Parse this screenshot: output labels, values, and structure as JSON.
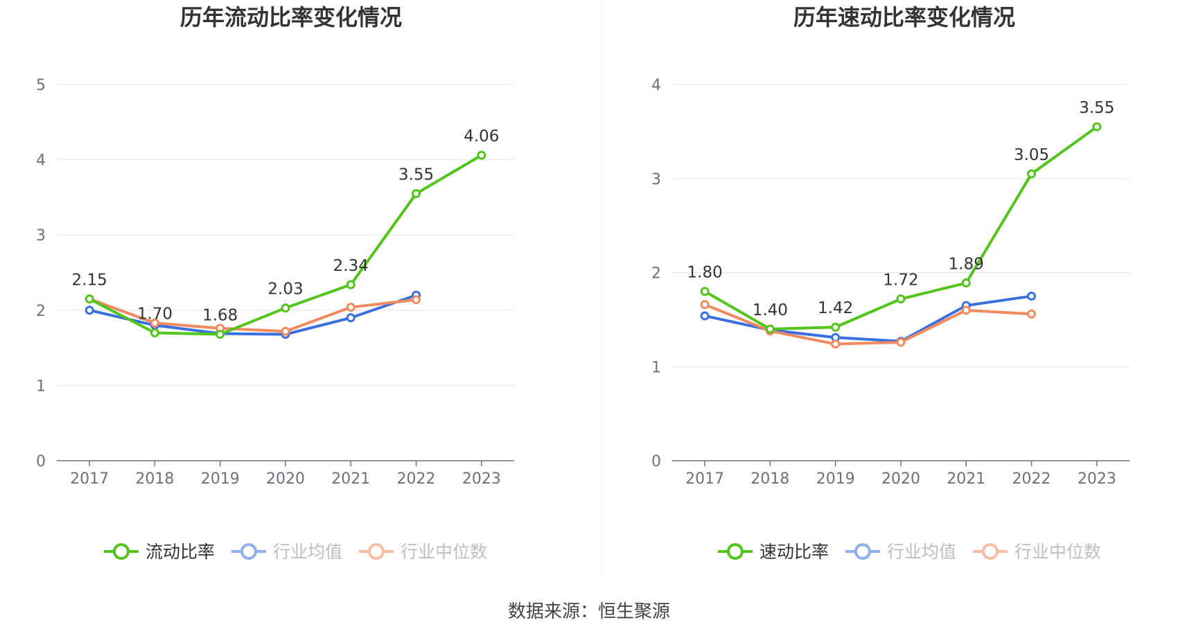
{
  "footer": {
    "source": "数据来源：恒生聚源"
  },
  "colors": {
    "main": "#52c41a",
    "avg": "#3a6fe0",
    "median": "#f28a5f",
    "grid": "#e0e6f1",
    "axis": "#6e7079"
  },
  "chart_data": [
    {
      "type": "line",
      "title": "历年流动比率变化情况",
      "categories": [
        "2017",
        "2018",
        "2019",
        "2020",
        "2021",
        "2022",
        "2023"
      ],
      "ylim": [
        0,
        5
      ],
      "yticks": [
        0,
        1,
        2,
        3,
        4,
        5
      ],
      "legend_position": "bottom",
      "series": [
        {
          "name": "流动比率",
          "values": [
            2.15,
            1.7,
            1.68,
            2.03,
            2.34,
            3.55,
            4.06
          ],
          "labels": [
            "2.15",
            "1.70",
            "1.68",
            "2.03",
            "2.34",
            "3.55",
            "4.06"
          ],
          "legend_style": "solid"
        },
        {
          "name": "行业均值",
          "values": [
            2.0,
            1.8,
            1.69,
            1.68,
            1.9,
            2.2,
            null
          ],
          "legend_style": "faded"
        },
        {
          "name": "行业中位数",
          "values": [
            2.15,
            1.83,
            1.76,
            1.72,
            2.04,
            2.14,
            null
          ],
          "legend_style": "faded"
        }
      ]
    },
    {
      "type": "line",
      "title": "历年速动比率变化情况",
      "categories": [
        "2017",
        "2018",
        "2019",
        "2020",
        "2021",
        "2022",
        "2023"
      ],
      "ylim": [
        0,
        4
      ],
      "yticks": [
        0,
        1,
        2,
        3,
        4
      ],
      "legend_position": "bottom",
      "series": [
        {
          "name": "速动比率",
          "values": [
            1.8,
            1.4,
            1.42,
            1.72,
            1.89,
            3.05,
            3.55
          ],
          "labels": [
            "1.80",
            "1.40",
            "1.42",
            "1.72",
            "1.89",
            "3.05",
            "3.55"
          ],
          "legend_style": "solid"
        },
        {
          "name": "行业均值",
          "values": [
            1.54,
            1.39,
            1.31,
            1.27,
            1.65,
            1.75,
            null
          ],
          "legend_style": "faded"
        },
        {
          "name": "行业中位数",
          "values": [
            1.66,
            1.38,
            1.24,
            1.26,
            1.6,
            1.56,
            null
          ],
          "legend_style": "faded"
        }
      ]
    }
  ]
}
